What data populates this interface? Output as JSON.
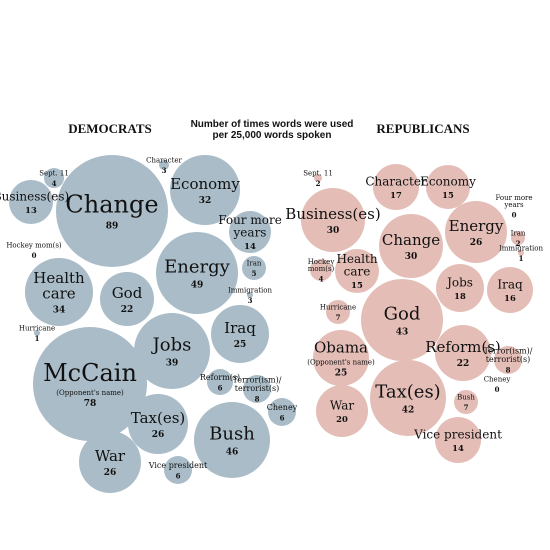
{
  "chart_data": {
    "type": "bubble",
    "title": "Number of times words were used per 25,000 words spoken",
    "title_lines": [
      "Number of times words were used",
      "per 25,000 words spoken"
    ],
    "colors": {
      "Democrats": "#a9bcc8",
      "Republicans": "#e4bdb6"
    },
    "groups": [
      {
        "name": "DEMOCRATS",
        "items": [
          {
            "word": "Change",
            "value": 89
          },
          {
            "word": "Economy",
            "value": 32
          },
          {
            "word": "Character",
            "value": 3
          },
          {
            "word": "Sept. 11",
            "value": 4
          },
          {
            "word": "Business(es)",
            "value": 13
          },
          {
            "word": "Hockey mom(s)",
            "value": 0
          },
          {
            "word": "Four more years",
            "value": 14
          },
          {
            "word": "Iran",
            "value": 5
          },
          {
            "word": "Energy",
            "value": 49
          },
          {
            "word": "Immigration",
            "value": 3
          },
          {
            "word": "Health care",
            "value": 34
          },
          {
            "word": "God",
            "value": 22
          },
          {
            "word": "Hurricane",
            "value": 1
          },
          {
            "word": "Iraq",
            "value": 25
          },
          {
            "word": "Jobs",
            "value": 39
          },
          {
            "word": "McCain",
            "note": "(Opponent's name)",
            "value": 78
          },
          {
            "word": "Reform(s)",
            "value": 6
          },
          {
            "word": "Terror(ism)/ terrorist(s)",
            "value": 8
          },
          {
            "word": "Cheney",
            "value": 6
          },
          {
            "word": "Tax(es)",
            "value": 26
          },
          {
            "word": "Bush",
            "value": 46
          },
          {
            "word": "War",
            "value": 26
          },
          {
            "word": "Vice president",
            "value": 6
          }
        ]
      },
      {
        "name": "REPUBLICANS",
        "items": [
          {
            "word": "Sept. 11",
            "value": 2
          },
          {
            "word": "Character",
            "value": 17
          },
          {
            "word": "Economy",
            "value": 15
          },
          {
            "word": "Four more years",
            "value": 0
          },
          {
            "word": "Business(es)",
            "value": 30
          },
          {
            "word": "Change",
            "value": 30
          },
          {
            "word": "Energy",
            "value": 26
          },
          {
            "word": "Iran",
            "value": 2
          },
          {
            "word": "Immigration",
            "value": 1
          },
          {
            "word": "Hockey mom(s)",
            "value": 4
          },
          {
            "word": "Health care",
            "value": 15
          },
          {
            "word": "Jobs",
            "value": 18
          },
          {
            "word": "Iraq",
            "value": 16
          },
          {
            "word": "Hurricane",
            "value": 7
          },
          {
            "word": "God",
            "value": 43
          },
          {
            "word": "Obama",
            "note": "(Opponent's name)",
            "value": 25
          },
          {
            "word": "Reform(s)",
            "value": 22
          },
          {
            "word": "Terror(ism)/ terrorist(s)",
            "value": 8
          },
          {
            "word": "Cheney",
            "value": 0
          },
          {
            "word": "Tax(es)",
            "value": 42
          },
          {
            "word": "Bush",
            "value": 7
          },
          {
            "word": "War",
            "value": 20
          },
          {
            "word": "Vice president",
            "value": 14
          }
        ]
      }
    ]
  }
}
